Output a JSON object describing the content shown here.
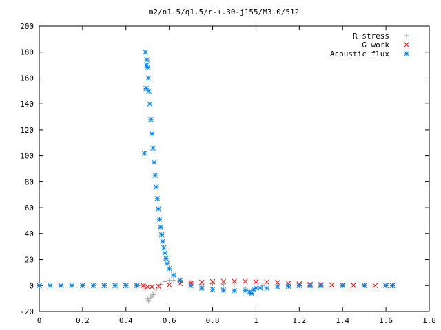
{
  "chart_data": {
    "type": "scatter",
    "title": "m2/n1.5/q1.5/r-+.30-j155/M3.0/512",
    "xlabel": "",
    "ylabel": "",
    "xlim": [
      0,
      1.8
    ],
    "ylim": [
      -20,
      200
    ],
    "grid": false,
    "legend_position": "top-right",
    "x_ticks": [
      "0",
      "0.2",
      "0.4",
      "0.6",
      "0.8",
      "1",
      "1.2",
      "1.4",
      "1.6",
      "1.8"
    ],
    "x_tick_values": [
      0,
      0.2,
      0.4,
      0.6,
      0.8,
      1.0,
      1.2,
      1.4,
      1.6,
      1.8
    ],
    "y_ticks": [
      "-20",
      "0",
      "20",
      "40",
      "60",
      "80",
      "100",
      "120",
      "140",
      "160",
      "180",
      "200"
    ],
    "y_tick_values": [
      -20,
      0,
      20,
      40,
      60,
      80,
      100,
      120,
      140,
      160,
      180,
      200
    ],
    "series": [
      {
        "name": "R stress",
        "marker": "plus",
        "color": "#a0a0a0",
        "x": [
          0.0,
          0.1,
          0.2,
          0.3,
          0.4,
          0.46,
          0.48,
          0.49,
          0.5,
          0.505,
          0.51,
          0.515,
          0.52,
          0.525,
          0.53,
          0.54,
          0.55,
          0.56,
          0.57,
          0.58,
          0.6,
          0.62,
          0.65,
          0.7,
          0.75,
          0.8,
          0.85,
          0.9,
          0.95,
          0.97,
          0.98,
          0.99,
          1.0,
          1.03,
          1.1,
          1.2,
          1.3,
          1.4,
          1.5,
          1.6,
          1.63
        ],
        "y": [
          0,
          0,
          0,
          0,
          0,
          0,
          0,
          -2,
          -10,
          -12,
          -10,
          -8,
          -9,
          -7,
          -5,
          -3,
          -1,
          1,
          2,
          3,
          4,
          4,
          3,
          2.5,
          2,
          1.5,
          1,
          0.5,
          -2,
          -4,
          -6,
          -4,
          -1,
          0,
          0.5,
          0.5,
          0.3,
          0.2,
          0.1,
          0,
          0
        ]
      },
      {
        "name": "G work",
        "marker": "cross",
        "color": "#ff0000",
        "x": [
          0.0,
          0.1,
          0.2,
          0.3,
          0.4,
          0.45,
          0.48,
          0.5,
          0.52,
          0.55,
          0.6,
          0.65,
          0.7,
          0.75,
          0.8,
          0.85,
          0.9,
          0.95,
          1.0,
          1.05,
          1.1,
          1.15,
          1.2,
          1.25,
          1.3,
          1.35,
          1.4,
          1.45,
          1.5,
          1.55,
          1.6,
          1.63
        ],
        "y": [
          0,
          0,
          0,
          0,
          0,
          0,
          0,
          -1,
          -1,
          -0.5,
          0.5,
          1.5,
          2,
          2.5,
          3,
          3.3,
          3.4,
          3.3,
          3,
          2.7,
          2.3,
          1.8,
          1.3,
          0.9,
          0.6,
          0.4,
          0.3,
          0.2,
          0.1,
          0.05,
          0,
          0
        ]
      },
      {
        "name": "Acoustic flux",
        "marker": "star",
        "color": "#0080e0",
        "x": [
          0.0,
          0.05,
          0.1,
          0.15,
          0.2,
          0.25,
          0.3,
          0.35,
          0.4,
          0.45,
          0.485,
          0.49,
          0.493,
          0.495,
          0.497,
          0.5,
          0.503,
          0.506,
          0.51,
          0.515,
          0.52,
          0.525,
          0.53,
          0.535,
          0.54,
          0.545,
          0.55,
          0.555,
          0.56,
          0.565,
          0.57,
          0.575,
          0.58,
          0.585,
          0.59,
          0.6,
          0.62,
          0.65,
          0.7,
          0.75,
          0.8,
          0.85,
          0.9,
          0.95,
          0.97,
          0.98,
          0.99,
          1.0,
          1.02,
          1.05,
          1.1,
          1.15,
          1.2,
          1.25,
          1.3,
          1.4,
          1.5,
          1.6,
          1.63
        ],
        "y": [
          0,
          0,
          0,
          0,
          0,
          0,
          0,
          0,
          0,
          0,
          102,
          180,
          152,
          170,
          174,
          168,
          160,
          150,
          140,
          128,
          117,
          106,
          95,
          85,
          76,
          67,
          59,
          51,
          45,
          39,
          34,
          29,
          25,
          21,
          17,
          13,
          8,
          4,
          0,
          -2,
          -3,
          -3.5,
          -4,
          -4,
          -5,
          -6,
          -3,
          -2,
          -2,
          -2,
          -1,
          -0.5,
          0,
          0,
          0,
          0,
          0,
          0,
          0
        ]
      }
    ]
  }
}
